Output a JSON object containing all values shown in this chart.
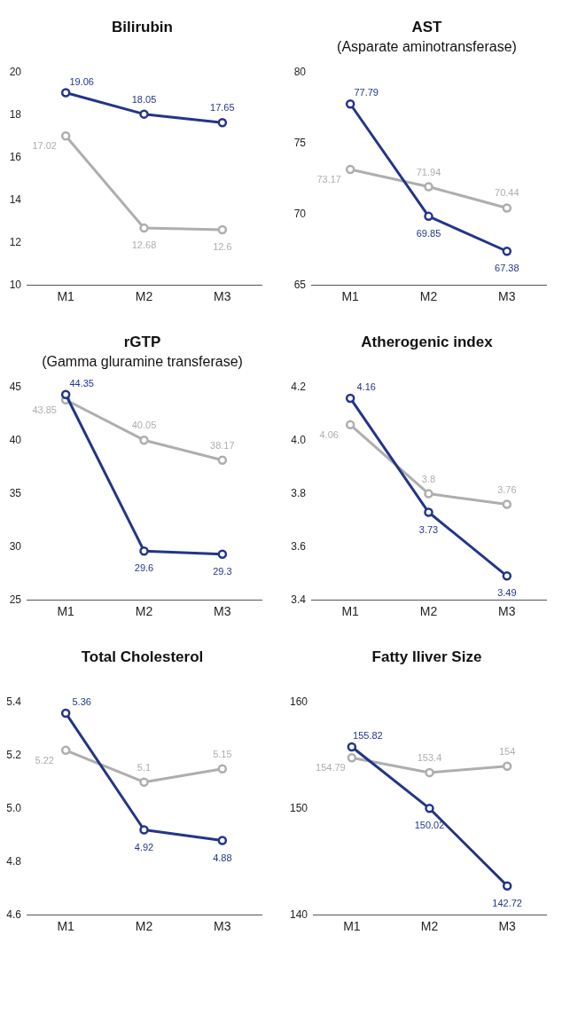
{
  "chart_data": [
    {
      "type": "line",
      "title": "Bilirubin",
      "categories": [
        "M1",
        "M2",
        "M3"
      ],
      "series": [
        {
          "color": "#22358a",
          "values": [
            19.06,
            18.05,
            17.65
          ]
        },
        {
          "color": "#aeaeae",
          "values": [
            17.02,
            12.68,
            12.6
          ]
        }
      ],
      "ylim": [
        10,
        20
      ],
      "yticks": [
        10,
        12,
        14,
        16,
        18,
        20
      ],
      "data_labels": true,
      "marker": "circle",
      "grid": false
    },
    {
      "type": "line",
      "title": "AST",
      "subtitle": "(Asparate aminotransferase)",
      "categories": [
        "M1",
        "M2",
        "M3"
      ],
      "series": [
        {
          "color": "#22358a",
          "values": [
            77.79,
            69.85,
            67.38
          ]
        },
        {
          "color": "#aeaeae",
          "values": [
            73.17,
            71.94,
            70.44
          ]
        }
      ],
      "ylim": [
        65,
        80
      ],
      "yticks": [
        65,
        70,
        75,
        80
      ],
      "data_labels": true,
      "marker": "circle",
      "grid": false
    },
    {
      "type": "line",
      "title": "rGTP",
      "subtitle": "(Gamma gluramine transferase)",
      "categories": [
        "M1",
        "M2",
        "M3"
      ],
      "series": [
        {
          "color": "#22358a",
          "values": [
            44.35,
            29.6,
            29.3
          ]
        },
        {
          "color": "#aeaeae",
          "values": [
            43.85,
            40.05,
            38.17
          ]
        }
      ],
      "ylim": [
        25,
        45
      ],
      "yticks": [
        25,
        30,
        35,
        40,
        45
      ],
      "data_labels": true,
      "marker": "circle",
      "grid": false
    },
    {
      "type": "line",
      "title": "Atherogenic index",
      "categories": [
        "M1",
        "M2",
        "M3"
      ],
      "series": [
        {
          "color": "#22358a",
          "values": [
            4.16,
            3.73,
            3.49
          ]
        },
        {
          "color": "#aeaeae",
          "values": [
            4.06,
            3.8,
            3.76
          ]
        }
      ],
      "ylim": [
        3.4,
        4.2
      ],
      "yticks": [
        3.4,
        3.6,
        3.8,
        {
          "value": 4,
          "label": "4.0"
        },
        4.2
      ],
      "data_labels": true,
      "marker": "circle",
      "grid": false
    },
    {
      "type": "line",
      "title": "Total Cholesterol",
      "categories": [
        "M1",
        "M2",
        "M3"
      ],
      "series": [
        {
          "color": "#22358a",
          "values": [
            5.36,
            4.92,
            4.88
          ]
        },
        {
          "color": "#aeaeae",
          "values": [
            5.22,
            5.1,
            5.15
          ]
        }
      ],
      "ylim": [
        4.6,
        5.4
      ],
      "yticks": [
        4.6,
        4.8,
        {
          "value": 5,
          "label": "5.0"
        },
        5.2,
        5.4
      ],
      "data_labels": true,
      "marker": "circle",
      "grid": false
    },
    {
      "type": "line",
      "title": "Fatty Iliver Size",
      "categories": [
        "M1",
        "M2",
        "M3"
      ],
      "series": [
        {
          "color": "#22358a",
          "values": [
            155.82,
            150.02,
            142.72
          ]
        },
        {
          "color": "#aeaeae",
          "values": [
            154.79,
            153.4,
            154
          ]
        }
      ],
      "ylim": [
        140,
        160
      ],
      "yticks": [
        140,
        150,
        160
      ],
      "data_labels": true,
      "marker": "circle",
      "grid": false
    }
  ]
}
